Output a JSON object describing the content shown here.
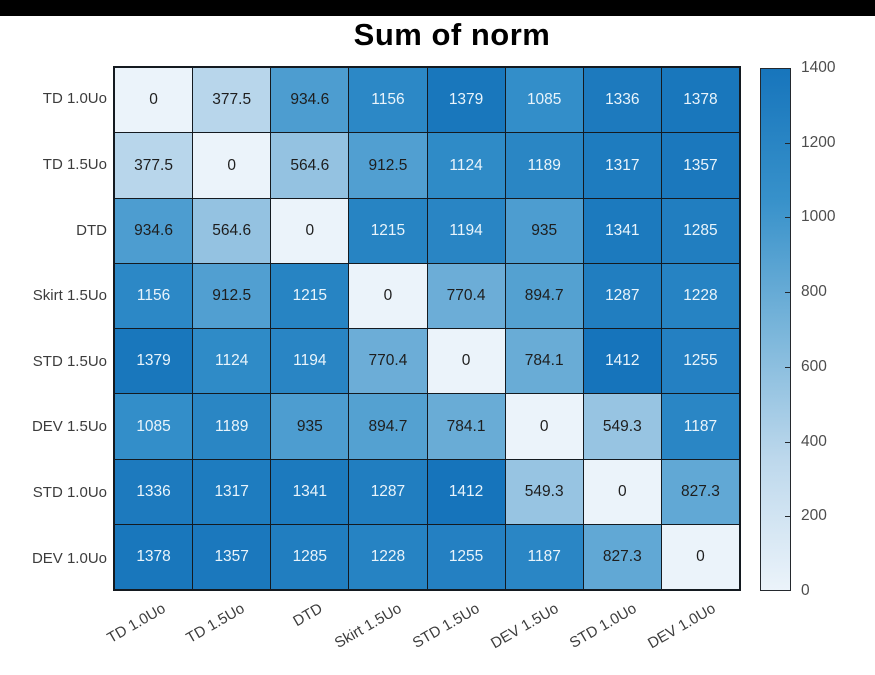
{
  "chart_data": {
    "type": "heatmap",
    "title": "Sum of norm",
    "categories": [
      "TD 1.0Uo",
      "TD 1.5Uo",
      "DTD",
      "Skirt 1.5Uo",
      "STD 1.5Uo",
      "DEV 1.5Uo",
      "STD 1.0Uo",
      "DEV 1.0Uo"
    ],
    "matrix": [
      [
        0,
        377.5,
        934.6,
        1156,
        1379,
        1085,
        1336,
        1378
      ],
      [
        377.5,
        0,
        564.6,
        912.5,
        1124,
        1189,
        1317,
        1357
      ],
      [
        934.6,
        564.6,
        0,
        1215,
        1194,
        935,
        1341,
        1285
      ],
      [
        1156,
        912.5,
        1215,
        0,
        770.4,
        894.7,
        1287,
        1228
      ],
      [
        1379,
        1124,
        1194,
        770.4,
        0,
        784.1,
        1412,
        1255
      ],
      [
        1085,
        1189,
        935,
        894.7,
        784.1,
        0,
        549.3,
        1187
      ],
      [
        1336,
        1317,
        1341,
        1287,
        1412,
        549.3,
        0,
        827.3
      ],
      [
        1378,
        1357,
        1285,
        1228,
        1255,
        1187,
        827.3,
        0
      ]
    ],
    "colorbar": {
      "min": 0,
      "max": 1400,
      "ticks": [
        0,
        200,
        400,
        600,
        800,
        1000,
        1200,
        1400
      ],
      "position": "right"
    },
    "color_scale": {
      "vmax": 1412,
      "stops": [
        [
          0.0,
          "#ebf3fa"
        ],
        [
          0.25,
          "#bdd8ec"
        ],
        [
          0.5,
          "#78b4da"
        ],
        [
          0.75,
          "#3590ca"
        ],
        [
          1.0,
          "#1674bb"
        ]
      ],
      "text_light": "#e9f4fb",
      "text_dark": "#1e1e1e",
      "light_text_threshold": 1000
    },
    "grid_on": true,
    "grid_line_color": "#141a20",
    "xlabel": "",
    "ylabel": ""
  }
}
